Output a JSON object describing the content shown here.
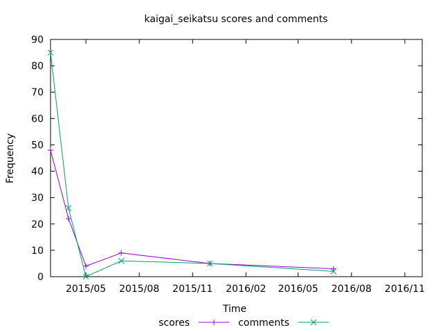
{
  "chart_data": {
    "type": "line",
    "title": "kaigai_seikatsu scores and comments",
    "xlabel": "Time",
    "ylabel": "Frequency",
    "ylim": [
      0,
      90
    ],
    "yticks": [
      0,
      10,
      20,
      30,
      40,
      50,
      60,
      70,
      80,
      90
    ],
    "xlim": [
      "2015-03-01",
      "2016-12-01"
    ],
    "xticks": [
      {
        "date": "2015-05-01",
        "label": "2015/05"
      },
      {
        "date": "2015-08-01",
        "label": "2015/08"
      },
      {
        "date": "2015-11-01",
        "label": "2015/11"
      },
      {
        "date": "2016-02-01",
        "label": "2016/02"
      },
      {
        "date": "2016-05-01",
        "label": "2016/05"
      },
      {
        "date": "2016-08-01",
        "label": "2016/08"
      },
      {
        "date": "2016-11-01",
        "label": "2016/11"
      }
    ],
    "grid": false,
    "legend": "bottom",
    "series": [
      {
        "name": "scores",
        "color": "#9400d3",
        "marker": "plus",
        "points": [
          {
            "x": "2015-03-01",
            "y": 48
          },
          {
            "x": "2015-04-01",
            "y": 22
          },
          {
            "x": "2015-05-01",
            "y": 4
          },
          {
            "x": "2015-07-01",
            "y": 9
          },
          {
            "x": "2015-12-01",
            "y": 5
          },
          {
            "x": "2016-07-01",
            "y": 3
          }
        ]
      },
      {
        "name": "comments",
        "color": "#009e73",
        "marker": "cross",
        "points": [
          {
            "x": "2015-03-01",
            "y": 85
          },
          {
            "x": "2015-04-01",
            "y": 26
          },
          {
            "x": "2015-05-01",
            "y": 0
          },
          {
            "x": "2015-07-01",
            "y": 6
          },
          {
            "x": "2015-12-01",
            "y": 5
          },
          {
            "x": "2016-07-01",
            "y": 2
          }
        ]
      }
    ]
  }
}
